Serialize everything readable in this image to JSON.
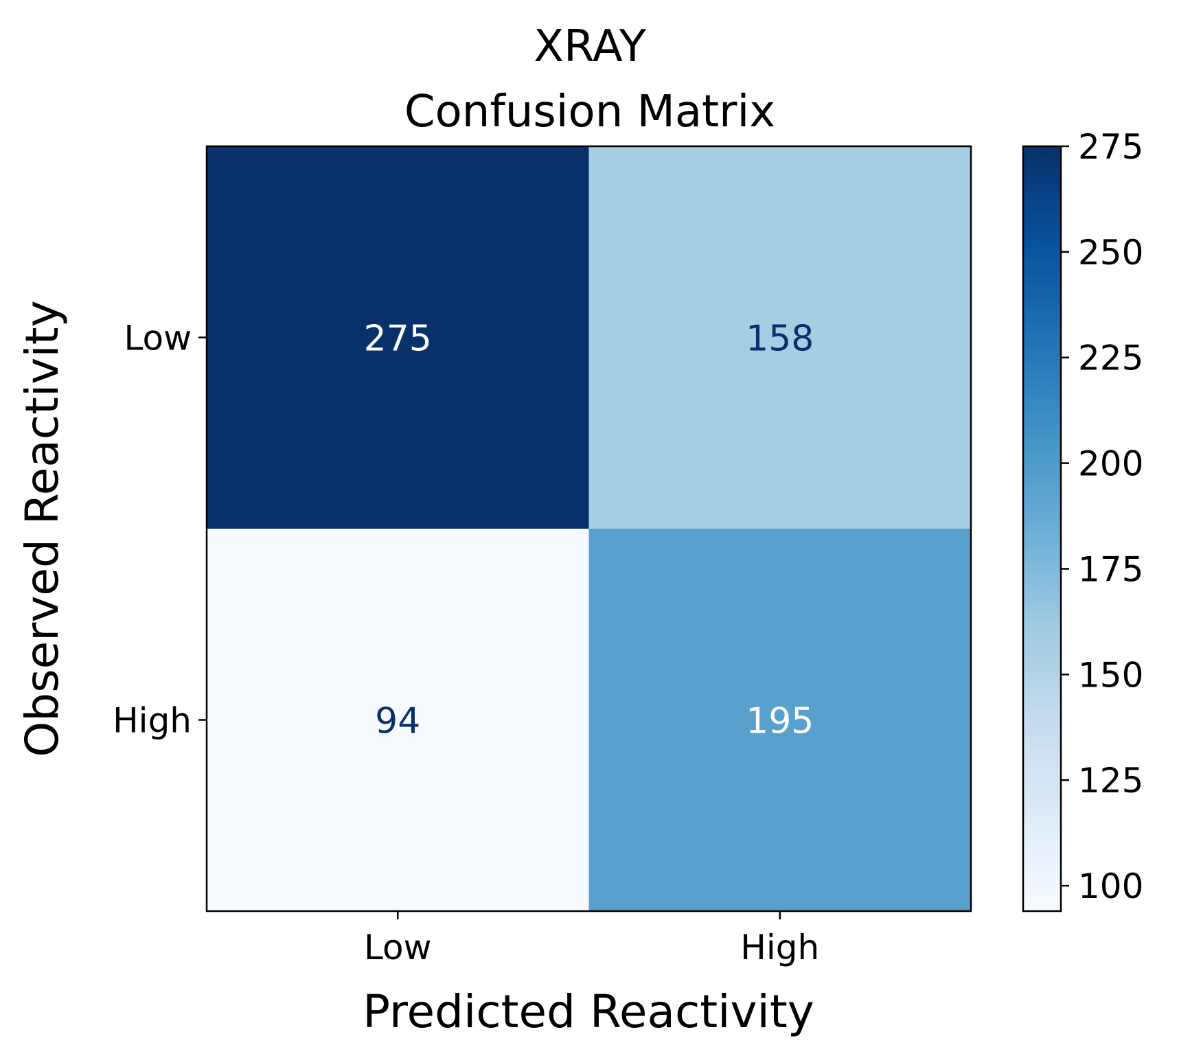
{
  "chart_data": {
    "type": "heatmap",
    "title_line1": "XRAY",
    "title_line2": "Confusion Matrix",
    "xlabel": "Predicted Reactivity",
    "ylabel": "Observed Reactivity",
    "x_categories": [
      "Low",
      "High"
    ],
    "y_categories": [
      "Low",
      "High"
    ],
    "values": [
      [
        275,
        158
      ],
      [
        94,
        195
      ]
    ],
    "cell_labels": [
      [
        "275",
        "158"
      ],
      [
        "94",
        "195"
      ]
    ],
    "colormap": "Blues",
    "color_range": [
      94,
      275
    ],
    "colorbar_ticks": [
      100,
      125,
      150,
      175,
      200,
      225,
      250,
      275
    ],
    "colorbar_tick_labels": [
      "100",
      "125",
      "150",
      "175",
      "200",
      "225",
      "250",
      "275"
    ],
    "grid": false
  }
}
